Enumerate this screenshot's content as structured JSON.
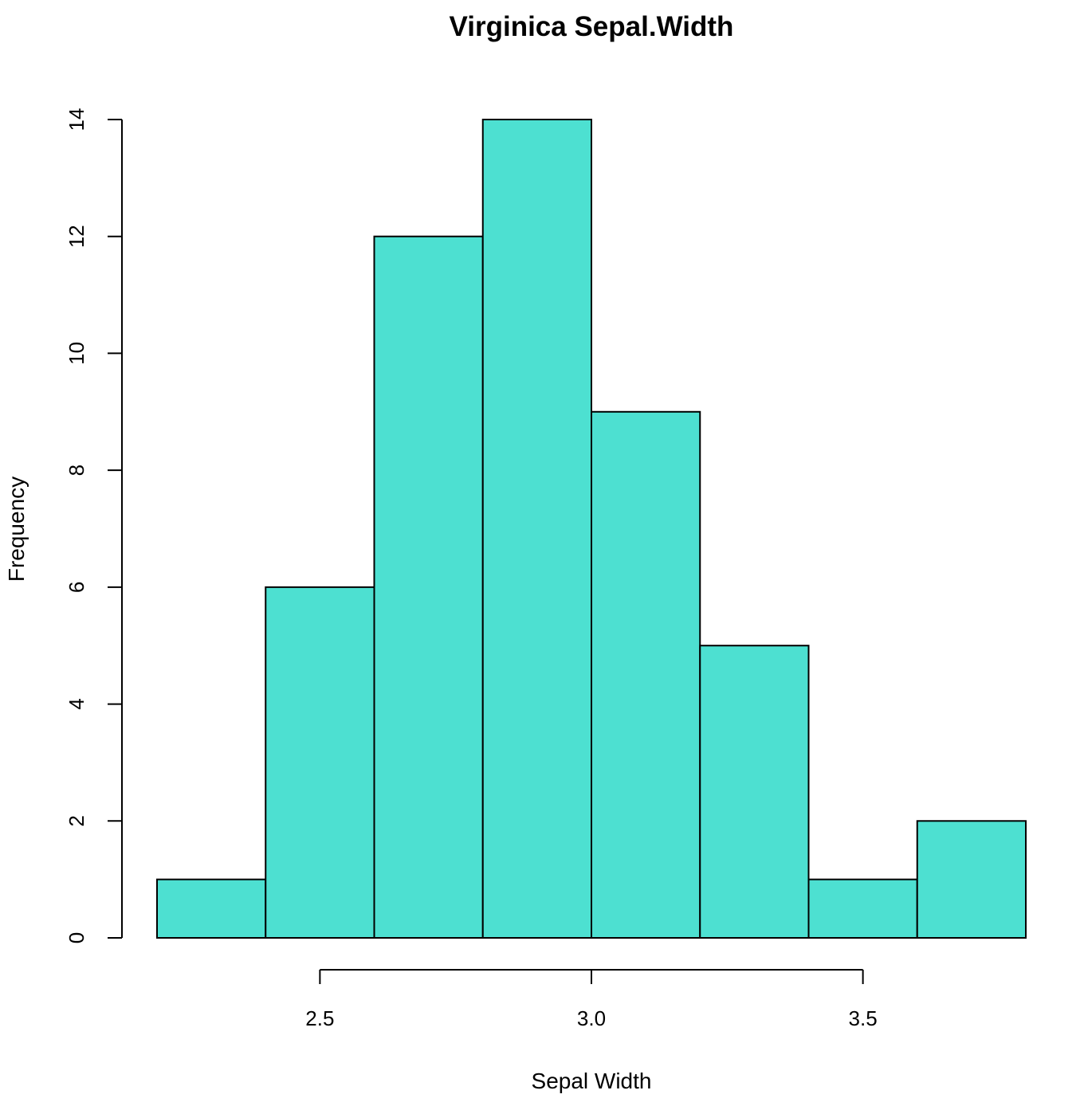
{
  "chart_data": {
    "type": "bar",
    "subtype": "histogram",
    "title": "Virginica Sepal.Width",
    "xlabel": "Sepal Width",
    "ylabel": "Frequency",
    "bin_edges": [
      2.2,
      2.4,
      2.6,
      2.8,
      3.0,
      3.2,
      3.4,
      3.6,
      3.8
    ],
    "values": [
      1,
      6,
      12,
      14,
      9,
      5,
      1,
      2
    ],
    "xlim": [
      2.2,
      3.8
    ],
    "ylim": [
      0,
      14
    ],
    "x_ticks": [
      "2.5",
      "3.0",
      "3.5"
    ],
    "y_ticks": [
      "0",
      "2",
      "4",
      "6",
      "8",
      "10",
      "12",
      "14"
    ],
    "bar_color": "#4de0d1",
    "grid": false,
    "legend": "none"
  }
}
